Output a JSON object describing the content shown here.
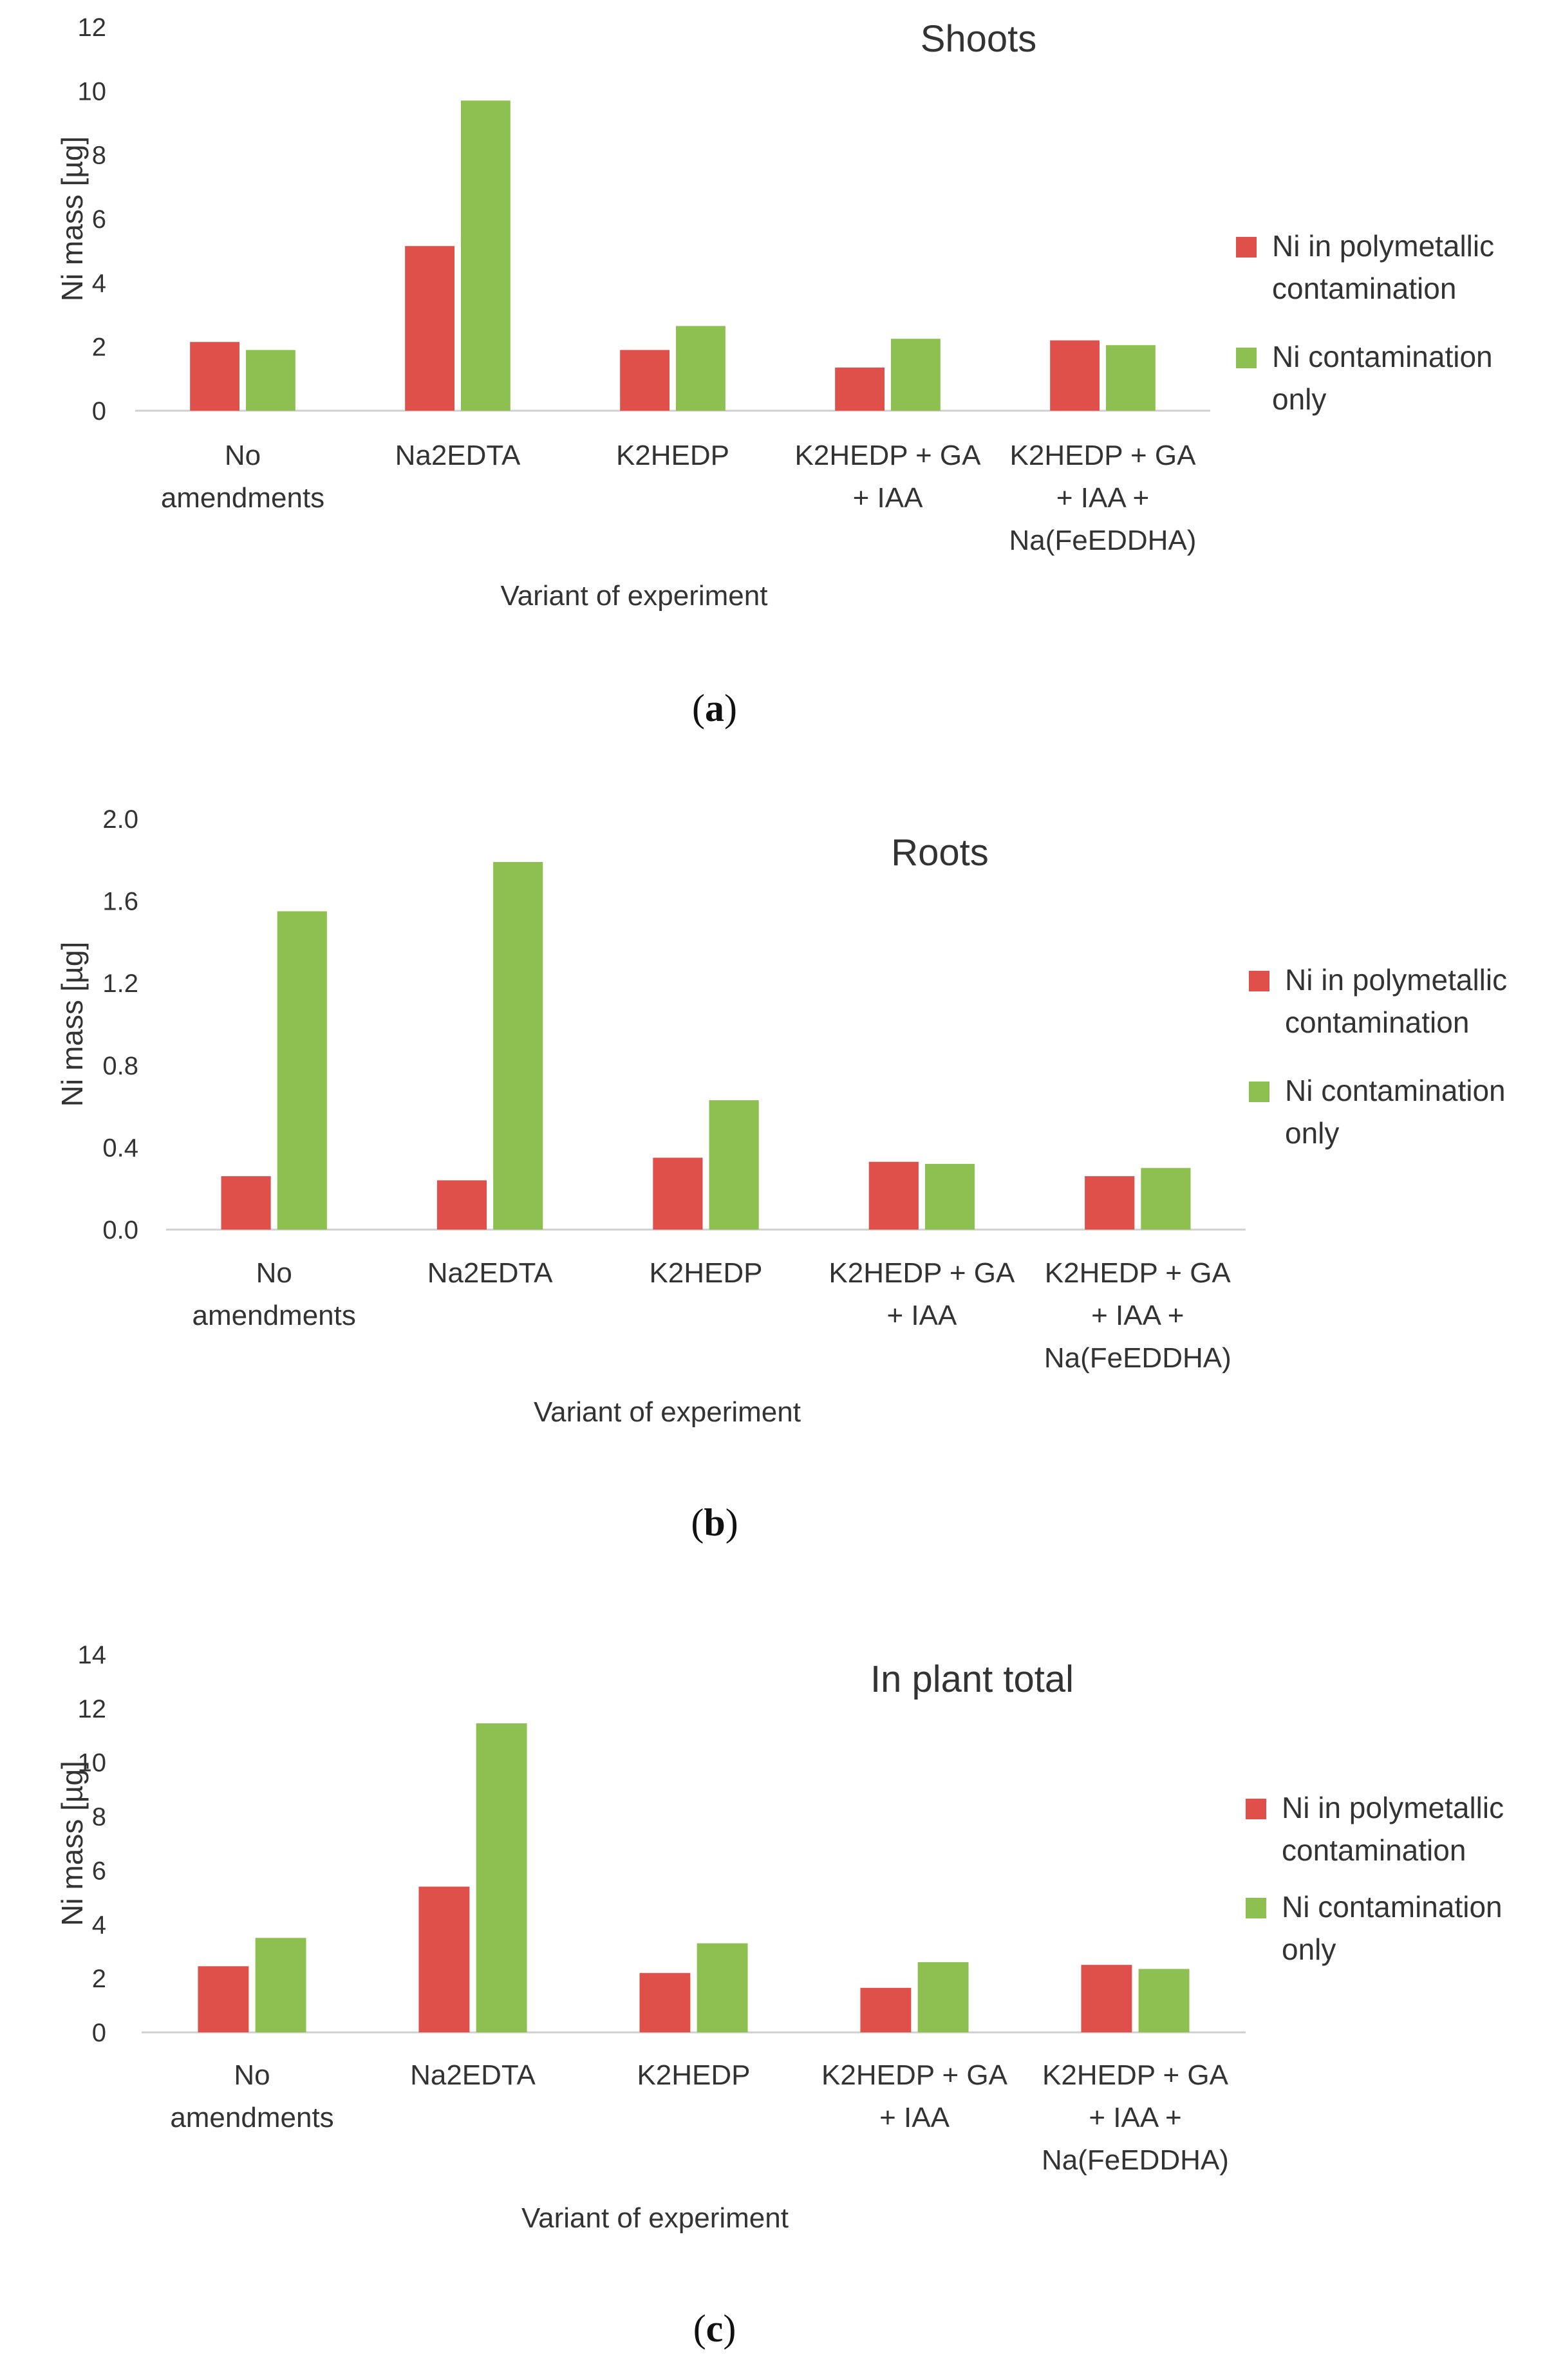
{
  "colors": {
    "polymetallic": "#e0504b",
    "ni_only": "#8dc050",
    "axis": "#d0d0d0",
    "text": "#333333"
  },
  "chart_data": [
    {
      "type": "bar",
      "panel": "a",
      "caption": {
        "open": "(",
        "letter": "a",
        "close": ")"
      },
      "title": "Shoots",
      "ylabel": "Ni mass [µg]",
      "xlabel": "Variant of experiment",
      "ylim": [
        0,
        12
      ],
      "yticks": [
        "0",
        "2",
        "4",
        "6",
        "8",
        "10",
        "12"
      ],
      "categories": [
        [
          "No",
          "amendments"
        ],
        [
          "Na2EDTA"
        ],
        [
          "K2HEDP"
        ],
        [
          "K2HEDP + GA",
          "+ IAA"
        ],
        [
          "K2HEDP + GA",
          "+ IAA +",
          "Na(FeEDDHA)"
        ]
      ],
      "series": [
        {
          "name": [
            "Ni in polymetallic",
            "contamination"
          ],
          "values": [
            2.15,
            5.15,
            1.9,
            1.35,
            2.2
          ]
        },
        {
          "name": [
            "Ni contamination",
            "only"
          ],
          "values": [
            1.9,
            9.7,
            2.65,
            2.25,
            2.05
          ]
        }
      ]
    },
    {
      "type": "bar",
      "panel": "b",
      "caption": {
        "open": "(",
        "letter": "b",
        "close": ")"
      },
      "title": "Roots",
      "ylabel": "Ni mass [µg]",
      "xlabel": "Variant of experiment",
      "ylim": [
        0,
        2.0
      ],
      "yticks": [
        "0.0",
        "0.4",
        "0.8",
        "1.2",
        "1.6",
        "2.0"
      ],
      "categories": [
        [
          "No",
          "amendments"
        ],
        [
          "Na2EDTA"
        ],
        [
          "K2HEDP"
        ],
        [
          "K2HEDP + GA",
          "+ IAA"
        ],
        [
          "K2HEDP + GA",
          "+ IAA +",
          "Na(FeEDDHA)"
        ]
      ],
      "series": [
        {
          "name": [
            "Ni in polymetallic",
            "contamination"
          ],
          "values": [
            0.26,
            0.24,
            0.35,
            0.33,
            0.26
          ]
        },
        {
          "name": [
            "Ni contamination",
            "only"
          ],
          "values": [
            1.55,
            1.79,
            0.63,
            0.32,
            0.3
          ]
        }
      ]
    },
    {
      "type": "bar",
      "panel": "c",
      "caption": {
        "open": "(",
        "letter": "c",
        "close": ")"
      },
      "title": "In plant total",
      "ylabel": "Ni mass [µg]",
      "xlabel": "Variant of experiment",
      "ylim": [
        0,
        14
      ],
      "yticks": [
        "0",
        "2",
        "4",
        "6",
        "8",
        "10",
        "12",
        "14"
      ],
      "categories": [
        [
          "No",
          "amendments"
        ],
        [
          "Na2EDTA"
        ],
        [
          "K2HEDP"
        ],
        [
          "K2HEDP + GA",
          "+ IAA"
        ],
        [
          "K2HEDP + GA",
          "+ IAA +",
          "Na(FeEDDHA)"
        ]
      ],
      "series": [
        {
          "name": [
            "Ni in polymetallic",
            "contamination"
          ],
          "values": [
            2.45,
            5.4,
            2.2,
            1.65,
            2.5
          ]
        },
        {
          "name": [
            "Ni contamination",
            "only"
          ],
          "values": [
            3.5,
            11.45,
            3.3,
            2.6,
            2.35
          ]
        }
      ]
    }
  ]
}
